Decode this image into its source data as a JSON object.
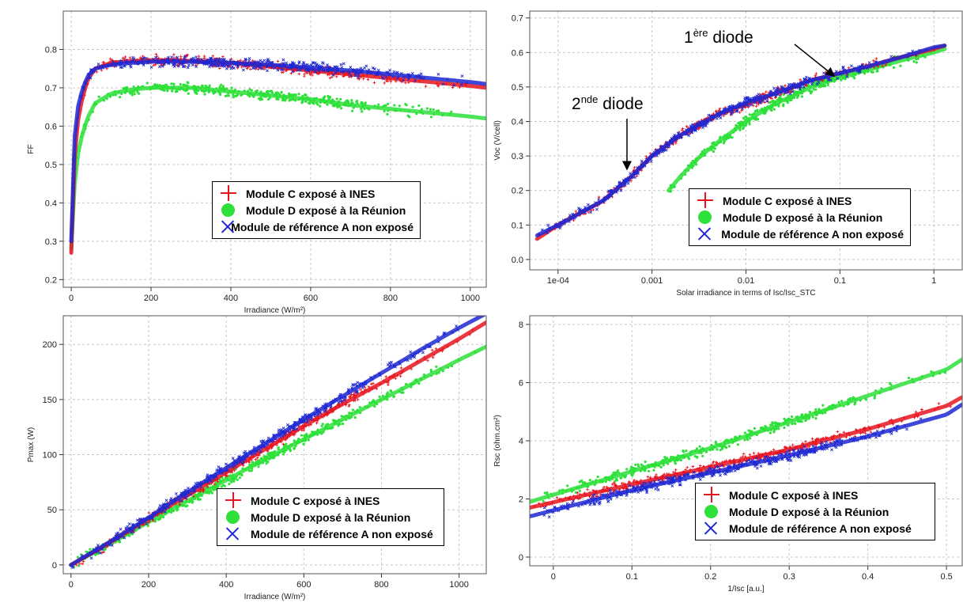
{
  "legend": {
    "c": "Module C exposé à INES",
    "d": "Module D exposé à la Réunion",
    "a": "Module de référence A non exposé"
  },
  "colors": {
    "c": "#e8141e",
    "d": "#2ee03a",
    "a": "#1e28d2"
  },
  "annotations": {
    "first_sup": "ère",
    "first_text": "diode",
    "first_num": "1",
    "second_sup": "nde",
    "second_text": "diode",
    "second_num": "2"
  },
  "chart_data": [
    {
      "id": "ff",
      "type": "scatter",
      "xlabel": "Irradiance (W/m²)",
      "ylabel": "FF",
      "xlim": [
        -20,
        1040
      ],
      "ylim": [
        0.18,
        0.9
      ],
      "xticks": [
        0,
        200,
        400,
        600,
        800,
        1000
      ],
      "xticklabels": [
        "0",
        "200",
        "400",
        "600",
        "800",
        "1000"
      ],
      "yticks": [
        0.2,
        0.3,
        0.4,
        0.5,
        0.6,
        0.7,
        0.8
      ],
      "yticklabels": [
        "0.2",
        "0.3",
        "0.4",
        "0.5",
        "0.6",
        "0.7",
        "0.8"
      ],
      "grid": true,
      "legend_position": "bottom-right",
      "series": [
        {
          "name": "Module C exposé à INES",
          "x": [
            0,
            5,
            10,
            20,
            40,
            60,
            100,
            150,
            200,
            300,
            400,
            500,
            600,
            700,
            800,
            900,
            1000,
            1040
          ],
          "y": [
            0.27,
            0.45,
            0.55,
            0.64,
            0.72,
            0.75,
            0.765,
            0.77,
            0.772,
            0.77,
            0.765,
            0.755,
            0.745,
            0.735,
            0.725,
            0.715,
            0.705,
            0.7
          ]
        },
        {
          "name": "Module D exposé à la Réunion",
          "x": [
            0,
            5,
            10,
            20,
            40,
            60,
            100,
            150,
            200,
            300,
            400,
            500,
            600,
            700,
            800,
            900,
            1000,
            1040
          ],
          "y": [
            0.28,
            0.4,
            0.47,
            0.55,
            0.62,
            0.66,
            0.685,
            0.695,
            0.7,
            0.7,
            0.69,
            0.68,
            0.67,
            0.655,
            0.645,
            0.635,
            0.625,
            0.62
          ]
        },
        {
          "name": "Module de référence A non exposé",
          "x": [
            0,
            5,
            10,
            20,
            40,
            60,
            100,
            150,
            200,
            300,
            400,
            500,
            600,
            700,
            800,
            900,
            1000,
            1040
          ],
          "y": [
            0.3,
            0.5,
            0.6,
            0.67,
            0.73,
            0.75,
            0.76,
            0.765,
            0.768,
            0.768,
            0.765,
            0.76,
            0.752,
            0.745,
            0.735,
            0.725,
            0.715,
            0.71
          ]
        }
      ]
    },
    {
      "id": "voc",
      "type": "scatter",
      "xscale": "log",
      "xlabel": "Solar irradiance in terms of Isc/Isc_STC",
      "ylabel": "Voc (V/cell)",
      "xlim": [
        5e-05,
        2
      ],
      "ylim": [
        -0.03,
        0.72
      ],
      "xticks": [
        0.0001,
        0.001,
        0.01,
        0.1,
        1
      ],
      "xticklabels": [
        "1e-04",
        "0.001",
        "0.01",
        "0.1",
        "1"
      ],
      "yticks": [
        0,
        0.1,
        0.2,
        0.3,
        0.4,
        0.5,
        0.6,
        0.7
      ],
      "yticklabels": [
        "0.0",
        "0.1",
        "0.2",
        "0.3",
        "0.4",
        "0.5",
        "0.6",
        "0.7"
      ],
      "grid": true,
      "legend_position": "bottom-right",
      "series": [
        {
          "name": "Module C exposé à INES",
          "x": [
            6e-05,
            0.0001,
            0.0003,
            0.0006,
            0.001,
            0.002,
            0.005,
            0.01,
            0.02,
            0.05,
            0.1,
            0.2,
            0.5,
            1,
            1.3
          ],
          "y": [
            0.06,
            0.1,
            0.17,
            0.24,
            0.3,
            0.36,
            0.42,
            0.45,
            0.48,
            0.52,
            0.54,
            0.56,
            0.59,
            0.61,
            0.62
          ]
        },
        {
          "name": "Module D exposé à la Réunion",
          "x": [
            0.0015,
            0.002,
            0.003,
            0.005,
            0.01,
            0.02,
            0.05,
            0.1,
            0.2,
            0.5,
            1,
            1.3
          ],
          "y": [
            0.2,
            0.24,
            0.29,
            0.34,
            0.4,
            0.45,
            0.5,
            0.53,
            0.55,
            0.58,
            0.6,
            0.61
          ]
        },
        {
          "name": "Module de référence A non exposé",
          "x": [
            6e-05,
            0.0001,
            0.0003,
            0.0006,
            0.001,
            0.002,
            0.005,
            0.01,
            0.02,
            0.05,
            0.1,
            0.2,
            0.5,
            1,
            1.3
          ],
          "y": [
            0.07,
            0.1,
            0.17,
            0.24,
            0.3,
            0.36,
            0.42,
            0.455,
            0.48,
            0.52,
            0.54,
            0.56,
            0.59,
            0.615,
            0.62
          ]
        }
      ]
    },
    {
      "id": "pmax",
      "type": "scatter",
      "xlabel": "Irradiance (W/m²)",
      "ylabel": "Pmax (W)",
      "xlim": [
        -20,
        1070
      ],
      "ylim": [
        -8,
        226
      ],
      "xticks": [
        0,
        200,
        400,
        600,
        800,
        1000
      ],
      "xticklabels": [
        "0",
        "200",
        "400",
        "600",
        "800",
        "1000"
      ],
      "yticks": [
        0,
        50,
        100,
        150,
        200
      ],
      "yticklabels": [
        "0",
        "50",
        "100",
        "150",
        "200"
      ],
      "grid": true,
      "legend_position": "bottom-right",
      "series": [
        {
          "name": "Module C exposé à INES",
          "x": [
            0,
            100,
            200,
            300,
            400,
            500,
            600,
            700,
            800,
            900,
            1000,
            1070
          ],
          "y": [
            0,
            20,
            42,
            63,
            84,
            105,
            126,
            146,
            165,
            185,
            205,
            220
          ]
        },
        {
          "name": "Module D exposé à la Réunion",
          "x": [
            0,
            100,
            200,
            300,
            400,
            500,
            600,
            700,
            800,
            900,
            1000,
            1070
          ],
          "y": [
            0,
            19,
            39,
            58,
            77,
            96,
            114,
            132,
            150,
            168,
            186,
            198
          ]
        },
        {
          "name": "Module de référence A non exposé",
          "x": [
            0,
            100,
            200,
            300,
            400,
            500,
            600,
            700,
            800,
            900,
            1000,
            1070
          ],
          "y": [
            0,
            21,
            43,
            66,
            88,
            110,
            132,
            153,
            174,
            195,
            215,
            228
          ]
        }
      ]
    },
    {
      "id": "rsc",
      "type": "scatter",
      "xlabel": "1/Isc [a.u.]",
      "ylabel": "Rsc (ohm.cm²)",
      "xlim": [
        -0.03,
        0.52
      ],
      "ylim": [
        -0.3,
        8.3
      ],
      "xticks": [
        0,
        0.1,
        0.2,
        0.3,
        0.4,
        0.5
      ],
      "xticklabels": [
        "0",
        "0.1",
        "0.2",
        "0.3",
        "0.4",
        "0.5"
      ],
      "yticks": [
        0,
        2,
        4,
        6,
        8
      ],
      "yticklabels": [
        "0",
        "2",
        "4",
        "6",
        "8"
      ],
      "grid": true,
      "legend_position": "bottom-right",
      "series": [
        {
          "name": "Module C exposé à INES",
          "x": [
            -0.03,
            0.1,
            0.2,
            0.3,
            0.4,
            0.5,
            0.52
          ],
          "y": [
            1.7,
            2.5,
            3.1,
            3.7,
            4.4,
            5.2,
            5.5
          ]
        },
        {
          "name": "Module D exposé à la Réunion",
          "x": [
            -0.03,
            0.1,
            0.2,
            0.3,
            0.4,
            0.5,
            0.52
          ],
          "y": [
            1.9,
            2.95,
            3.75,
            4.65,
            5.55,
            6.45,
            6.8
          ]
        },
        {
          "name": "Module de référence A non exposé",
          "x": [
            -0.03,
            0.1,
            0.2,
            0.3,
            0.4,
            0.5,
            0.52
          ],
          "y": [
            1.4,
            2.3,
            2.9,
            3.5,
            4.15,
            4.9,
            5.25
          ]
        }
      ]
    }
  ]
}
